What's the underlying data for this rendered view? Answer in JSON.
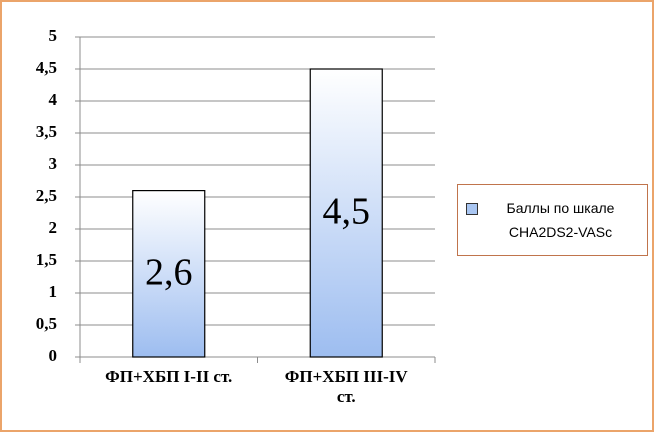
{
  "chart_data": {
    "type": "bar",
    "categories": [
      "ФП+ХБП I-II ст.",
      "ФП+ХБП III-IV ст."
    ],
    "series": [
      {
        "name": "Баллы по шкале CHA2DS2-VASc",
        "color": "#a9c6f2",
        "values": [
          2.6,
          4.5
        ],
        "value_labels": [
          "2,6",
          "4,5"
        ]
      }
    ],
    "ylim": [
      0,
      5
    ],
    "yticks": [
      0,
      {
        "value": 0.5,
        "label": "0,5"
      },
      1,
      {
        "value": 1.5,
        "label": "1,5"
      },
      2,
      {
        "value": 2.5,
        "label": "2,5"
      },
      3,
      {
        "value": 3.5,
        "label": "3,5"
      },
      4,
      {
        "value": 4.5,
        "label": "4,5"
      },
      5
    ],
    "grid": true,
    "legend": "right"
  }
}
